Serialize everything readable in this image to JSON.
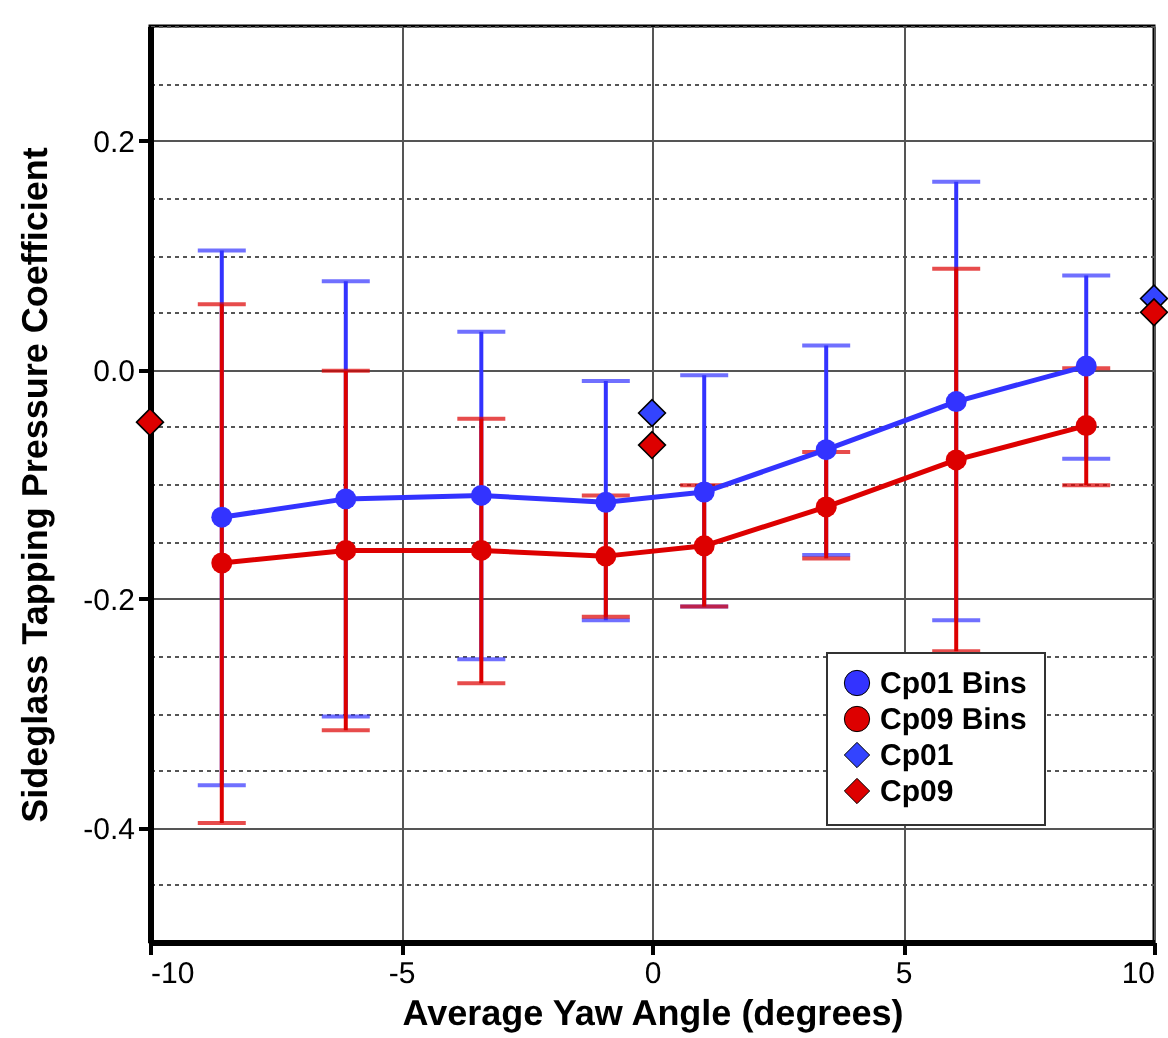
{
  "chart_data": {
    "type": "line",
    "xlabel": "Average Yaw Angle (degrees)",
    "ylabel": "Sideglass Tapping Pressure Coefficient",
    "xlim": [
      -10,
      10
    ],
    "xticks": [
      -10,
      -5,
      0,
      5,
      10
    ],
    "ylim": [
      -0.5,
      0.3
    ],
    "yticks": [
      {
        "value": -0.45,
        "label": null
      },
      {
        "value": -0.4,
        "label": "-0.4"
      },
      {
        "value": -0.35,
        "label": null
      },
      {
        "value": -0.3,
        "label": null
      },
      {
        "value": -0.25,
        "label": null
      },
      {
        "value": -0.2,
        "label": "-0.2"
      },
      {
        "value": -0.15,
        "label": null
      },
      {
        "value": -0.1,
        "label": null
      },
      {
        "value": -0.05,
        "label": null
      },
      {
        "value": 0,
        "label": "0.0"
      },
      {
        "value": 0.05,
        "label": null
      },
      {
        "value": 0.1,
        "label": null
      },
      {
        "value": 0.15,
        "label": null
      },
      {
        "value": 0.2,
        "label": "0.2"
      },
      {
        "value": 0.25,
        "label": null
      },
      {
        "value": 0.3,
        "label": null
      }
    ],
    "grid": true,
    "legend": "bottom right",
    "series": [
      {
        "name": "Cp01 Bins",
        "marker": "circle",
        "color": "#3333ff",
        "x": [
          -8.57,
          -6.1,
          -3.4,
          -0.92,
          1.04,
          3.47,
          6.06,
          8.65
        ],
        "values": [
          -0.129,
          -0.113,
          -0.11,
          -0.116,
          -0.107,
          -0.07,
          -0.028,
          0.003
        ],
        "errors": [
          [
            -0.363,
            0.104
          ],
          [
            -0.303,
            0.077
          ],
          [
            -0.253,
            0.033
          ],
          [
            -0.219,
            -0.01
          ],
          [
            -0.207,
            -0.005
          ],
          [
            -0.162,
            0.021
          ],
          [
            -0.219,
            0.164
          ],
          [
            -0.078,
            0.082
          ]
        ]
      },
      {
        "name": "Cp09 Bins",
        "marker": "circle",
        "color": "#dd0000",
        "x": [
          -8.57,
          -6.1,
          -3.4,
          -0.92,
          1.04,
          3.47,
          6.06,
          8.65
        ],
        "values": [
          -0.169,
          -0.158,
          -0.158,
          -0.163,
          -0.154,
          -0.12,
          -0.079,
          -0.049
        ],
        "errors": [
          [
            -0.396,
            0.057
          ],
          [
            -0.315,
            -0.001
          ],
          [
            -0.274,
            -0.043
          ],
          [
            -0.216,
            -0.11
          ],
          [
            -0.207,
            -0.101
          ],
          [
            -0.165,
            -0.072
          ],
          [
            -0.246,
            0.088
          ],
          [
            -0.101,
            0.001
          ]
        ]
      },
      {
        "name": "Cp01",
        "type": "scatter",
        "marker": "diamond",
        "color": "#3344ff",
        "x": [
          0,
          10
        ],
        "values": [
          -0.038,
          0.062
        ]
      },
      {
        "name": "Cp09",
        "type": "scatter",
        "marker": "diamond",
        "color": "#dd0000",
        "x": [
          -10,
          0,
          10
        ],
        "values": [
          -0.046,
          -0.066,
          0.05
        ]
      }
    ]
  }
}
